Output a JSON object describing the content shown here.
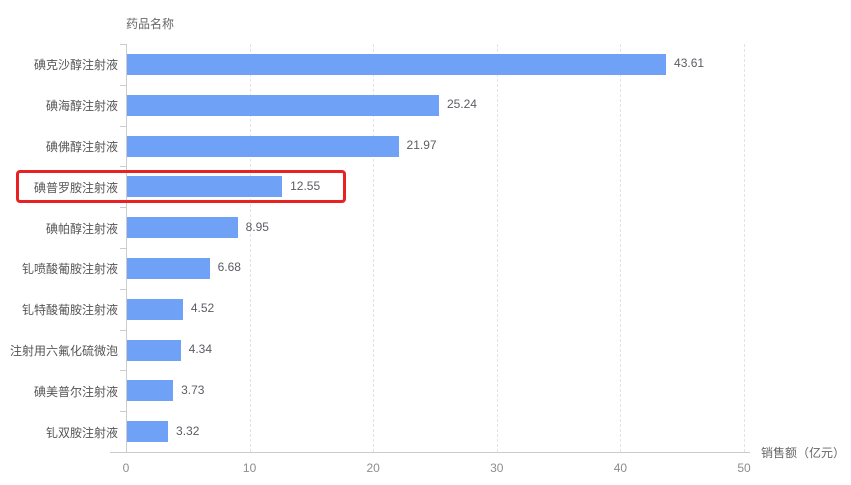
{
  "chart_data": {
    "type": "bar",
    "orientation": "horizontal",
    "title": "",
    "ylabel": "药品名称",
    "xlabel": "销售额（亿元）",
    "categories": [
      "碘克沙醇注射液",
      "碘海醇注射液",
      "碘佛醇注射液",
      "碘普罗胺注射液",
      "碘帕醇注射液",
      "钆喷酸葡胺注射液",
      "钆特酸葡胺注射液",
      "注射用六氟化硫微泡",
      "碘美普尔注射液",
      "钆双胺注射液"
    ],
    "values": [
      43.61,
      25.24,
      21.97,
      12.55,
      8.95,
      6.68,
      4.52,
      4.34,
      3.73,
      3.32
    ],
    "value_labels": [
      "43.61",
      "25.24",
      "21.97",
      "12.55",
      "8.95",
      "6.68",
      "4.52",
      "4.34",
      "3.73",
      "3.32"
    ],
    "xlim": [
      0,
      50
    ],
    "x_ticks": [
      0,
      10,
      20,
      30,
      40,
      50
    ],
    "grid": "vertical-dashed",
    "legend": "none",
    "highlight": {
      "index": 3,
      "category": "碘普罗胺注射液",
      "value": 12.55
    },
    "colors": {
      "bar": "#6FA1F7",
      "highlight_border": "#E82222",
      "axis": "#cccccc",
      "grid": "#dde4ec",
      "category_text": "#555555",
      "value_text": "#5a5d63",
      "tick_text": "#8d8d8d",
      "axis_title_text": "#666666"
    }
  }
}
